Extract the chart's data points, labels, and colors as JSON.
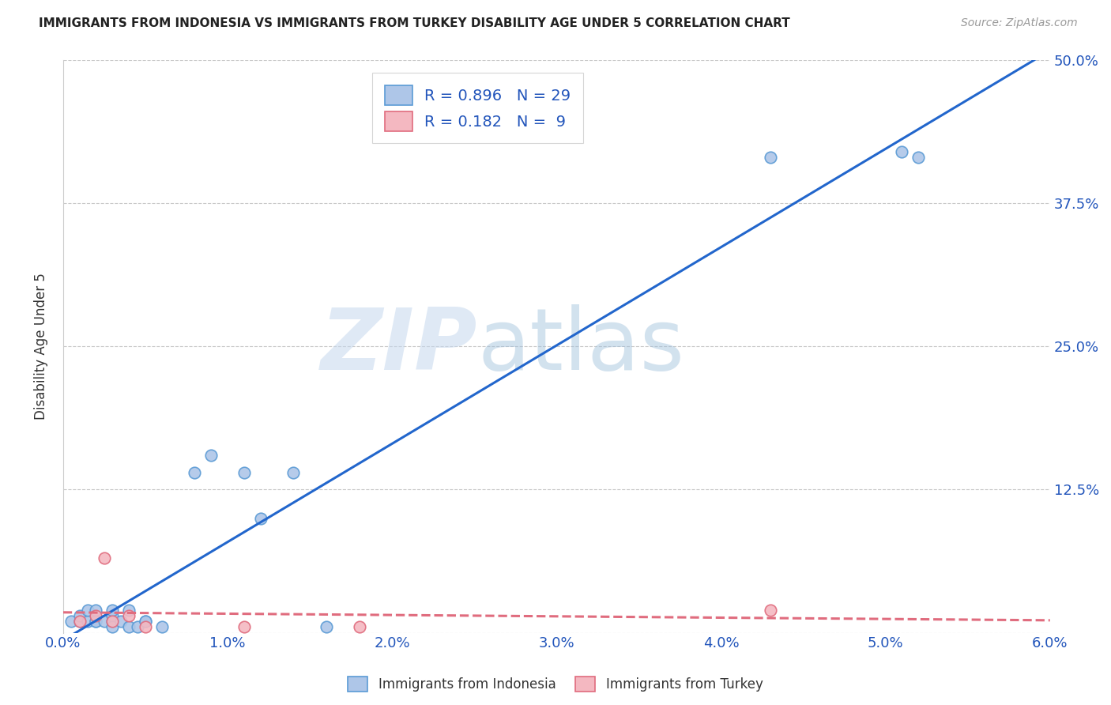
{
  "title": "IMMIGRANTS FROM INDONESIA VS IMMIGRANTS FROM TURKEY DISABILITY AGE UNDER 5 CORRELATION CHART",
  "source": "Source: ZipAtlas.com",
  "ylabel_label": "Disability Age Under 5",
  "xlim": [
    0.0,
    0.06
  ],
  "ylim": [
    0.0,
    0.5
  ],
  "xticks": [
    0.0,
    0.01,
    0.02,
    0.03,
    0.04,
    0.05,
    0.06
  ],
  "xtick_labels": [
    "0.0%",
    "1.0%",
    "2.0%",
    "3.0%",
    "4.0%",
    "5.0%",
    "6.0%"
  ],
  "yticks": [
    0.0,
    0.125,
    0.25,
    0.375,
    0.5
  ],
  "ytick_labels_right": [
    "",
    "12.5%",
    "25.0%",
    "37.5%",
    "50.0%"
  ],
  "grid_color": "#c8c8c8",
  "background_color": "#ffffff",
  "indonesia_color": "#aec6e8",
  "indonesia_edge_color": "#5b9bd5",
  "turkey_color": "#f4b8c1",
  "turkey_edge_color": "#e06c7e",
  "indonesia_line_color": "#2266cc",
  "turkey_line_color": "#e06c7e",
  "R_indonesia": 0.896,
  "N_indonesia": 29,
  "R_turkey": 0.182,
  "N_turkey": 9,
  "indonesia_x": [
    0.0005,
    0.001,
    0.001,
    0.0015,
    0.0015,
    0.002,
    0.002,
    0.002,
    0.0025,
    0.003,
    0.003,
    0.003,
    0.003,
    0.0035,
    0.004,
    0.004,
    0.0045,
    0.005,
    0.005,
    0.006,
    0.008,
    0.009,
    0.011,
    0.012,
    0.014,
    0.016,
    0.043,
    0.051,
    0.052
  ],
  "indonesia_y": [
    0.01,
    0.01,
    0.015,
    0.01,
    0.02,
    0.01,
    0.01,
    0.02,
    0.01,
    0.01,
    0.015,
    0.02,
    0.005,
    0.01,
    0.005,
    0.02,
    0.005,
    0.01,
    0.01,
    0.005,
    0.14,
    0.155,
    0.14,
    0.1,
    0.14,
    0.005,
    0.415,
    0.42,
    0.415
  ],
  "turkey_x": [
    0.001,
    0.002,
    0.0025,
    0.003,
    0.004,
    0.005,
    0.011,
    0.018,
    0.043
  ],
  "turkey_y": [
    0.01,
    0.015,
    0.065,
    0.01,
    0.015,
    0.005,
    0.005,
    0.005,
    0.02
  ]
}
